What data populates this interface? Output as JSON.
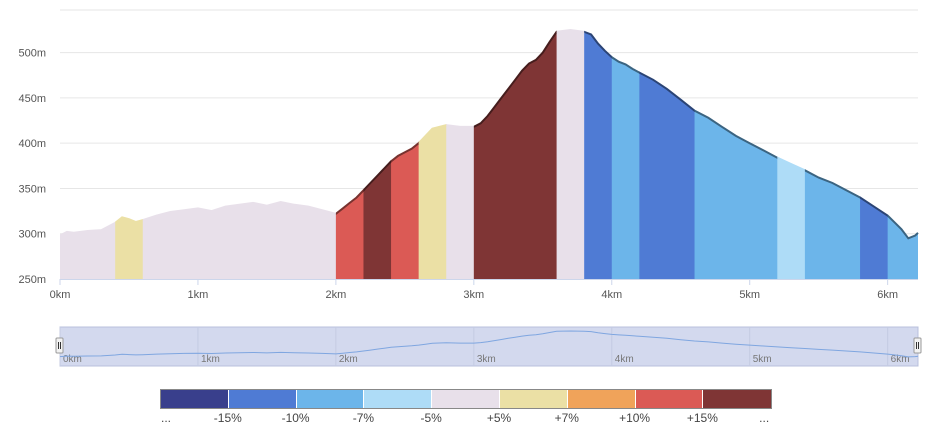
{
  "chart_data": {
    "type": "area",
    "title": "",
    "xlabel": "",
    "ylabel": "",
    "x_unit": "km",
    "y_unit": "m",
    "xlim": [
      0,
      6.22
    ],
    "ylim": [
      250,
      525
    ],
    "x_ticks": [
      "0km",
      "1km",
      "2km",
      "3km",
      "4km",
      "5km",
      "6km"
    ],
    "x_tick_values": [
      0,
      1,
      2,
      3,
      4,
      5,
      6
    ],
    "y_ticks": [
      "250m",
      "300m",
      "350m",
      "400m",
      "450m",
      "500m"
    ],
    "y_tick_values": [
      250,
      300,
      350,
      400,
      450,
      500
    ],
    "grid": true,
    "elevation_profile": {
      "x": [
        0,
        0.05,
        0.1,
        0.2,
        0.3,
        0.4,
        0.45,
        0.5,
        0.55,
        0.6,
        0.7,
        0.8,
        0.9,
        1.0,
        1.1,
        1.2,
        1.3,
        1.4,
        1.5,
        1.6,
        1.7,
        1.8,
        1.9,
        2.0,
        2.05,
        2.1,
        2.15,
        2.2,
        2.25,
        2.3,
        2.35,
        2.4,
        2.45,
        2.5,
        2.55,
        2.6,
        2.65,
        2.7,
        2.8,
        2.9,
        3.0,
        3.05,
        3.1,
        3.15,
        3.2,
        3.25,
        3.3,
        3.35,
        3.4,
        3.45,
        3.5,
        3.55,
        3.6,
        3.7,
        3.8,
        3.85,
        3.9,
        3.95,
        4.0,
        4.05,
        4.1,
        4.15,
        4.2,
        4.3,
        4.4,
        4.5,
        4.6,
        4.7,
        4.8,
        4.9,
        5.0,
        5.1,
        5.2,
        5.3,
        5.4,
        5.5,
        5.6,
        5.7,
        5.8,
        5.9,
        6.0,
        6.1,
        6.15,
        6.2,
        6.22
      ],
      "y": [
        298,
        302,
        301,
        303,
        304,
        312,
        318,
        316,
        313,
        315,
        320,
        324,
        326,
        328,
        325,
        330,
        332,
        334,
        331,
        335,
        332,
        330,
        326,
        322,
        328,
        334,
        340,
        348,
        356,
        364,
        372,
        380,
        386,
        390,
        394,
        400,
        408,
        416,
        420,
        418,
        418,
        422,
        430,
        440,
        450,
        460,
        470,
        480,
        488,
        492,
        500,
        512,
        523,
        525,
        523,
        520,
        510,
        502,
        495,
        490,
        487,
        482,
        478,
        470,
        460,
        448,
        436,
        428,
        418,
        408,
        400,
        392,
        384,
        377,
        370,
        362,
        356,
        348,
        340,
        330,
        320,
        305,
        295,
        298,
        301
      ]
    },
    "grade_segments": [
      {
        "start": 0.0,
        "end": 0.4,
        "color": "#e8e0ea"
      },
      {
        "start": 0.4,
        "end": 0.6,
        "color": "#ebe0a5"
      },
      {
        "start": 0.6,
        "end": 2.0,
        "color": "#e8e0ea"
      },
      {
        "start": 2.0,
        "end": 2.2,
        "color": "#db5a55"
      },
      {
        "start": 2.2,
        "end": 2.4,
        "color": "#7f3535"
      },
      {
        "start": 2.4,
        "end": 2.6,
        "color": "#db5a55"
      },
      {
        "start": 2.6,
        "end": 2.8,
        "color": "#ebe0a5"
      },
      {
        "start": 2.8,
        "end": 3.0,
        "color": "#e8e0ea"
      },
      {
        "start": 3.0,
        "end": 3.6,
        "color": "#7f3535"
      },
      {
        "start": 3.6,
        "end": 3.8,
        "color": "#e8e0ea"
      },
      {
        "start": 3.8,
        "end": 4.0,
        "color": "#4f7bd4"
      },
      {
        "start": 4.0,
        "end": 4.2,
        "color": "#6cb5ea"
      },
      {
        "start": 4.2,
        "end": 4.6,
        "color": "#4f7bd4"
      },
      {
        "start": 4.6,
        "end": 5.2,
        "color": "#6cb5ea"
      },
      {
        "start": 5.2,
        "end": 5.4,
        "color": "#aedcf7"
      },
      {
        "start": 5.4,
        "end": 5.8,
        "color": "#6cb5ea"
      },
      {
        "start": 5.8,
        "end": 6.0,
        "color": "#4f7bd4"
      },
      {
        "start": 6.0,
        "end": 6.22,
        "color": "#6cb5ea"
      }
    ],
    "navigator_ticks": [
      "0km",
      "1km",
      "2km",
      "3km",
      "4km",
      "5km",
      "6km"
    ],
    "legend": {
      "colors": [
        "#393f8c",
        "#4f7bd4",
        "#6cb5ea",
        "#aedcf7",
        "#e8e0ea",
        "#ebe0a5",
        "#f0a35a",
        "#db5a55",
        "#7f3535"
      ],
      "labels": [
        "...",
        "-15%",
        "-10%",
        "-7%",
        "-5%",
        "+5%",
        "+7%",
        "+10%",
        "+15%",
        "..."
      ]
    }
  }
}
